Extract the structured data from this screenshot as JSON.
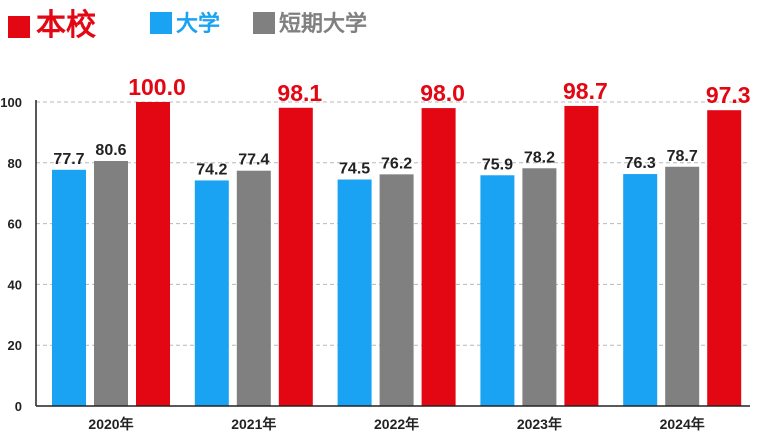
{
  "legend": [
    {
      "label": "本校",
      "color": "#e30613"
    },
    {
      "label": "大学",
      "color": "#1aa3f2"
    },
    {
      "label": "短期大学",
      "color": "#808080"
    }
  ],
  "chart_data": {
    "type": "bar",
    "categories": [
      "2020年",
      "2021年",
      "2022年",
      "2023年",
      "2024年"
    ],
    "series": [
      {
        "name": "大学",
        "color": "#1aa3f2",
        "values": [
          77.7,
          74.2,
          74.5,
          75.9,
          76.3
        ]
      },
      {
        "name": "短期大学",
        "color": "#808080",
        "values": [
          80.6,
          77.4,
          76.2,
          78.2,
          78.7
        ]
      },
      {
        "name": "本校",
        "color": "#e30613",
        "values": [
          100.0,
          98.1,
          98.0,
          98.7,
          97.3
        ]
      }
    ],
    "value_labels": [
      [
        "77.7",
        "74.2",
        "74.5",
        "75.9",
        "76.3"
      ],
      [
        "80.6",
        "77.4",
        "76.2",
        "78.2",
        "78.7"
      ],
      [
        "100.0",
        "98.1",
        "98.0",
        "98.7",
        "97.3"
      ]
    ],
    "yticks": [
      "0",
      "20",
      "40",
      "60",
      "80",
      "100"
    ],
    "ylim": [
      0,
      100
    ],
    "grid": "horizontal-dashed",
    "legend_position": "top-left"
  }
}
